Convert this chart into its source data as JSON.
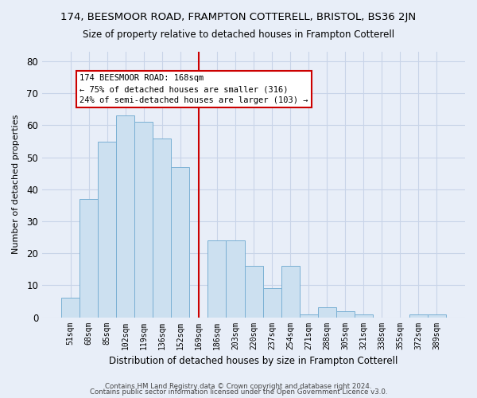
{
  "title": "174, BEESMOOR ROAD, FRAMPTON COTTERELL, BRISTOL, BS36 2JN",
  "subtitle": "Size of property relative to detached houses in Frampton Cotterell",
  "xlabel": "Distribution of detached houses by size in Frampton Cotterell",
  "ylabel": "Number of detached properties",
  "bar_labels": [
    "51sqm",
    "68sqm",
    "85sqm",
    "102sqm",
    "119sqm",
    "136sqm",
    "152sqm",
    "169sqm",
    "186sqm",
    "203sqm",
    "220sqm",
    "237sqm",
    "254sqm",
    "271sqm",
    "288sqm",
    "305sqm",
    "321sqm",
    "338sqm",
    "355sqm",
    "372sqm",
    "389sqm"
  ],
  "bar_values": [
    6,
    37,
    55,
    63,
    61,
    56,
    47,
    0,
    24,
    24,
    16,
    9,
    16,
    1,
    3,
    2,
    1,
    0,
    0,
    1,
    1
  ],
  "bar_color": "#cce0f0",
  "bar_edge_color": "#7ab0d4",
  "vline_pos": 7,
  "vline_color": "#cc0000",
  "ylim": [
    0,
    83
  ],
  "yticks": [
    0,
    10,
    20,
    30,
    40,
    50,
    60,
    70,
    80
  ],
  "annotation_title": "174 BEESMOOR ROAD: 168sqm",
  "annotation_line1": "← 75% of detached houses are smaller (316)",
  "annotation_line2": "24% of semi-detached houses are larger (103) →",
  "footer_line1": "Contains HM Land Registry data © Crown copyright and database right 2024.",
  "footer_line2": "Contains public sector information licensed under the Open Government Licence v3.0.",
  "background_color": "#e8eef8",
  "plot_bg_color": "#e8eef8",
  "grid_color": "#c8d4e8"
}
